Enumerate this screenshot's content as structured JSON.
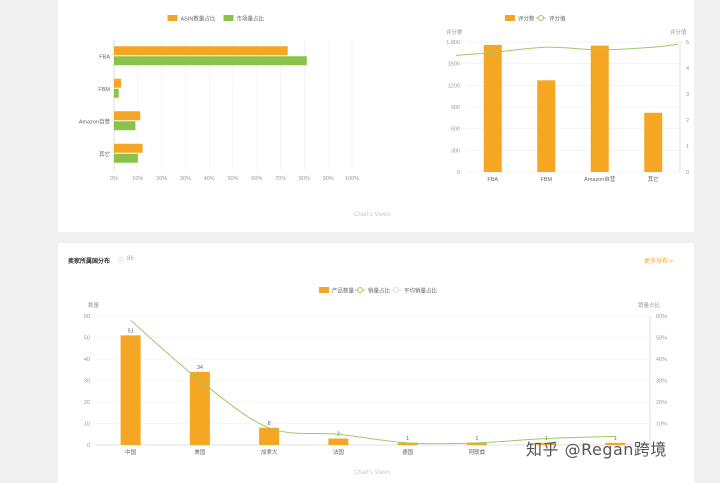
{
  "colors": {
    "orange": "#f5a623",
    "green": "#8bc34a",
    "line_green": "#9ccc65",
    "axis": "#999999",
    "grid": "#eeeeee",
    "card": "#ffffff",
    "bg": "#f0f0f0"
  },
  "card_top": {
    "footer": "Chart's Views"
  },
  "card_bottom": {
    "title": "卖家所属国分布",
    "subtitle_icon": "info-icon",
    "subtitle": "86",
    "link": "更多分布 >",
    "footer": "Chart's Views"
  },
  "watermark": {
    "text": "知乎 @Regan跨境"
  },
  "chart_data": [
    {
      "type": "bar",
      "orientation": "horizontal",
      "legend": [
        "ASIN数量占比",
        "市场量占比"
      ],
      "legend_position": "top-center",
      "categories": [
        "FBA",
        "FBM",
        "Amazon自营",
        "其它"
      ],
      "series": [
        {
          "name": "ASIN数量占比",
          "values": [
            73,
            3,
            11,
            12
          ]
        },
        {
          "name": "市场量占比",
          "values": [
            81,
            2,
            9,
            10
          ]
        }
      ],
      "xticks": [
        "0%",
        "10%",
        "20%",
        "30%",
        "40%",
        "50%",
        "60%",
        "70%",
        "80%",
        "90%",
        "100%"
      ],
      "xlim": [
        0,
        100
      ]
    },
    {
      "type": "bar",
      "legend": [
        "评分数",
        "评分值"
      ],
      "legend_position": "top-center",
      "ylabel_left": "评分数",
      "ylabel_right": "评分值",
      "categories": [
        "FBA",
        "FBM",
        "Amazon自营",
        "其它"
      ],
      "bars": {
        "name": "评分数",
        "values": [
          1760,
          1270,
          1750,
          820
        ]
      },
      "line": {
        "name": "评分值",
        "values": [
          4.6,
          4.8,
          4.7,
          4.8
        ]
      },
      "yticks_left": [
        "0",
        "300",
        "600",
        "900",
        "1200",
        "1500",
        "1,800"
      ],
      "yticks_right": [
        "0",
        "1",
        "2",
        "3",
        "4",
        "5"
      ],
      "ylim_left": [
        0,
        1800
      ],
      "ylim_right": [
        0,
        5
      ]
    },
    {
      "type": "bar",
      "legend": [
        "产品数量",
        "销量占比",
        "平均销量占比"
      ],
      "legend_position": "top-center",
      "ylabel_left": "数量",
      "ylabel_right": "销量占比",
      "categories": [
        "中国",
        "美国",
        "加拿大",
        "法国",
        "德国",
        "阿联酋",
        "",
        ""
      ],
      "bars": {
        "name": "产品数量",
        "values": [
          51,
          34,
          8,
          3,
          1,
          1,
          1,
          1
        ],
        "labels": [
          "51",
          "34",
          "8",
          "3",
          "1",
          "1",
          "1",
          "1"
        ]
      },
      "line": {
        "name": "销量占比",
        "values": [
          58,
          30,
          8,
          5,
          1,
          1,
          3,
          4
        ]
      },
      "yticks_left": [
        "0",
        "10",
        "20",
        "30",
        "40",
        "50",
        "60"
      ],
      "yticks_right": [
        "0%",
        "10%",
        "20%",
        "30%",
        "40%",
        "50%",
        "60%"
      ],
      "ylim_left": [
        0,
        60
      ],
      "ylim_right": [
        0,
        60
      ]
    }
  ]
}
